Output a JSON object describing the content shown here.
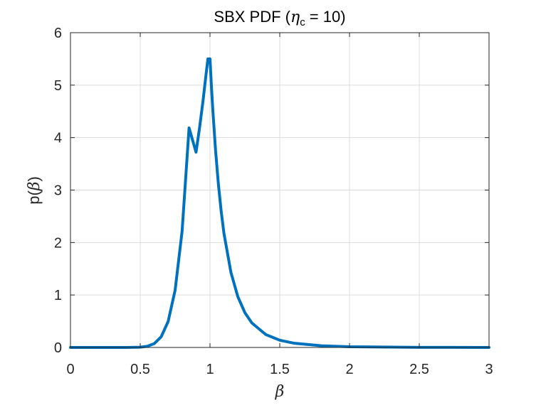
{
  "chart_data": {
    "type": "line",
    "title_prefix": "SBX  PDF  (",
    "title_symbol": "η",
    "title_subscript": "c",
    "title_suffix": "  =  10)",
    "xlabel": "β",
    "ylabel_prefix": "p(",
    "ylabel_symbol": "β",
    "ylabel_suffix": ")",
    "xlim": [
      0,
      3
    ],
    "ylim": [
      0,
      6
    ],
    "xticks": [
      "0",
      "0.5",
      "1",
      "1.5",
      "2",
      "2.5",
      "3"
    ],
    "yticks": [
      "0",
      "1",
      "2",
      "3",
      "4",
      "5",
      "6"
    ],
    "grid": true,
    "color": "#0072BD",
    "series": [
      {
        "x": [
          0,
          0.1,
          0.2,
          0.3,
          0.4,
          0.5,
          0.55,
          0.6,
          0.65,
          0.7,
          0.75,
          0.8,
          0.85,
          0.9,
          0.925,
          0.95,
          0.97,
          0.985,
          1.0,
          1.01,
          1.02,
          1.04,
          1.06,
          1.08,
          1.1,
          1.15,
          1.2,
          1.25,
          1.3,
          1.4,
          1.5,
          1.6,
          1.8,
          2.0,
          2.5,
          3.0
        ],
        "y": [
          0,
          0,
          0,
          0,
          0.0001,
          0.0055,
          0.0222,
          0.0727,
          0.202,
          0.4944,
          1.0914,
          2.2145,
          4.185,
          3.7223,
          4.1832,
          4.6999,
          5.1665,
          5.5,
          5.5,
          4.9901,
          4.5332,
          3.7524,
          3.1178,
          2.6001,
          2.1759,
          1.431,
          0.9635,
          0.6638,
          0.4672,
          0.2457,
          0.1378,
          0.0815,
          0.032,
          0.0142,
          0.0025,
          0.0006
        ]
      }
    ]
  }
}
